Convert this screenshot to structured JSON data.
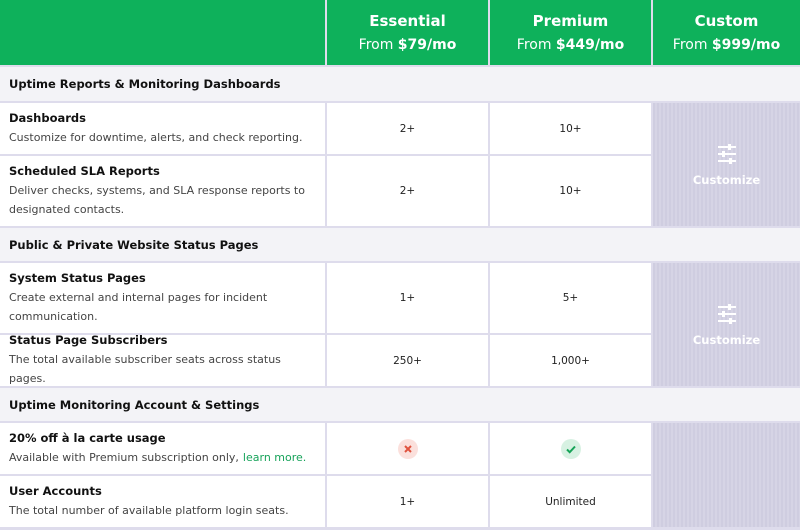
{
  "plans": [
    {
      "name": "Essential",
      "from": "From",
      "price": "$79/mo"
    },
    {
      "name": "Premium",
      "from": "From",
      "price": "$449/mo"
    },
    {
      "name": "Custom",
      "from": "From",
      "price": "$999/mo"
    }
  ],
  "sections": [
    {
      "title": "Uptime Reports & Monitoring Dashboards",
      "custom": "Customize",
      "rows": [
        {
          "feature": "Dashboards",
          "description": "Customize for downtime, alerts, and check reporting.",
          "values": [
            "2+",
            "10+"
          ]
        },
        {
          "feature": "Scheduled SLA Reports",
          "description": "Deliver checks, systems, and SLA response reports to designated contacts.",
          "values": [
            "2+",
            "10+"
          ]
        }
      ]
    },
    {
      "title": "Public & Private Website Status Pages",
      "custom": "Customize",
      "rows": [
        {
          "feature": "System Status Pages",
          "description": "Create external and internal pages for incident communication.",
          "values": [
            "1+",
            "5+"
          ]
        },
        {
          "feature": "Status Page Subscribers",
          "description": "The total available subscriber seats across status pages.",
          "values": [
            "250+",
            "1,000+"
          ]
        }
      ]
    },
    {
      "title": "Uptime Monitoring Account & Settings",
      "rows": [
        {
          "feature": "20% off à la carte usage",
          "description": "Available with Premium subscription only,",
          "link": "learn more.",
          "icons": [
            "cross",
            "check"
          ]
        },
        {
          "feature": "User Accounts",
          "description": "The total number of available platform login seats.",
          "values": [
            "1+",
            "Unlimited"
          ]
        }
      ]
    }
  ]
}
